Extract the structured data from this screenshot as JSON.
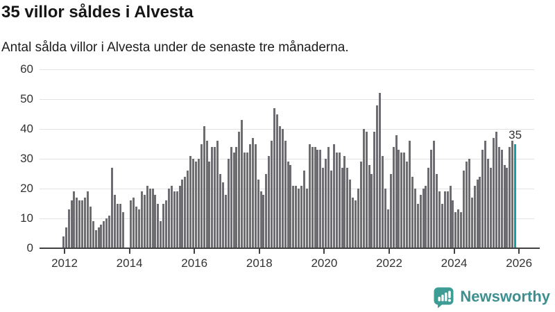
{
  "header": {
    "title": "35 villor såldes i Alvesta",
    "subtitle": "Antal sålda villor i Alvesta under de senaste tre månaderna."
  },
  "chart_data": {
    "type": "bar",
    "title": "35 villor såldes i Alvesta",
    "subtitle": "Antal sålda villor i Alvesta under de senaste tre månaderna.",
    "x_start": "2012-01",
    "frequency": "monthly",
    "values": [
      4,
      7,
      13,
      16,
      19,
      17,
      16,
      16,
      17,
      19,
      14,
      9,
      6,
      7,
      8,
      9,
      10,
      11,
      27,
      18,
      15,
      15,
      12,
      0,
      0,
      16,
      17,
      14,
      13,
      19,
      18,
      21,
      20,
      20,
      18,
      15,
      9,
      15,
      16,
      20,
      21,
      19,
      19,
      21,
      23,
      24,
      26,
      31,
      30,
      29,
      30,
      35,
      41,
      36,
      29,
      34,
      34,
      36,
      25,
      22,
      18,
      30,
      34,
      32,
      34,
      39,
      43,
      32,
      32,
      35,
      37,
      35,
      23,
      19,
      18,
      25,
      31,
      36,
      47,
      45,
      41,
      40,
      36,
      29,
      28,
      21,
      21,
      20,
      21,
      26,
      20,
      35,
      34,
      34,
      33,
      33,
      27,
      30,
      34,
      26,
      35,
      32,
      32,
      27,
      31,
      27,
      23,
      17,
      16,
      20,
      29,
      40,
      39,
      28,
      25,
      39,
      48,
      52,
      31,
      20,
      13,
      25,
      34,
      38,
      33,
      32,
      32,
      29,
      36,
      24,
      20,
      15,
      18,
      20,
      21,
      27,
      33,
      36,
      25,
      19,
      15,
      19,
      19,
      21,
      16,
      12,
      13,
      12,
      26,
      29,
      30,
      17,
      21,
      23,
      24,
      33,
      36,
      30,
      27,
      37,
      39,
      34,
      33,
      28,
      27,
      34,
      36,
      35
    ],
    "x_tick_labels": [
      "2012",
      "2014",
      "2016",
      "2018",
      "2020",
      "2022",
      "2024",
      "2026"
    ],
    "y_ticks": [
      0,
      10,
      20,
      30,
      40,
      50,
      60
    ],
    "ylim": [
      0,
      60
    ],
    "grid": "horizontal",
    "legend": "none",
    "bar_color": "#6c6c71",
    "highlight_color": "#169d9d",
    "highlight_index": 167,
    "annotation": {
      "text": "35",
      "index": 167
    }
  },
  "footer": {
    "brand": "Newsworthy",
    "brand_text_color": "#3e9090",
    "brand_icon_color": "#3d9c94"
  }
}
